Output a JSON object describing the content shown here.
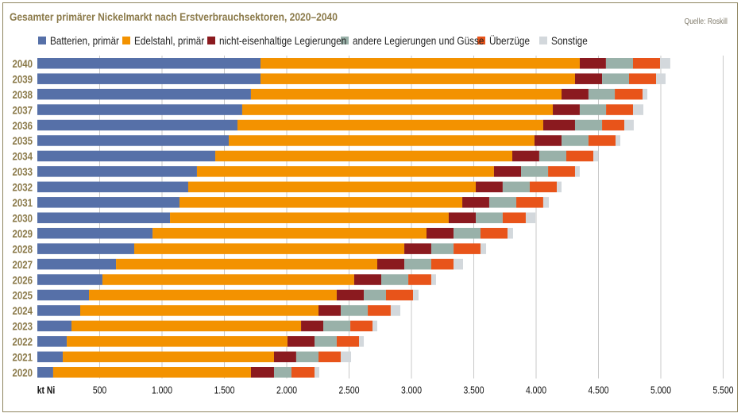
{
  "chart_data": {
    "type": "bar",
    "orientation": "horizontal",
    "stacked": true,
    "title": "Gesamter primärer Nickelmarkt nach Erstverbrauchsektoren, 2020–2040",
    "source": "Quelle: Roskill",
    "xlabel": "kt Ni",
    "ylabel": "",
    "xlim": [
      0,
      5500
    ],
    "xticks": [
      500,
      1000,
      1500,
      2000,
      2500,
      3000,
      3500,
      4000,
      4500,
      5000,
      5500
    ],
    "xtick_labels": [
      "500",
      "1.000",
      "1.500",
      "2.000",
      "2.500",
      "3.000",
      "3.500",
      "4.000",
      "4.500",
      "5.000",
      "5.500"
    ],
    "grid": "vertical",
    "legend_position": "top",
    "categories": [
      "2040",
      "2039",
      "2038",
      "2037",
      "2036",
      "2035",
      "2034",
      "2033",
      "2032",
      "2031",
      "2030",
      "2029",
      "2028",
      "2027",
      "2026",
      "2025",
      "2024",
      "2023",
      "2022",
      "2021",
      "2020"
    ],
    "series": [
      {
        "name": "Batterien, primär",
        "color": "#5670a8",
        "values": [
          1790,
          1790,
          1713,
          1643,
          1605,
          1535,
          1427,
          1280,
          1210,
          1140,
          1064,
          924,
          777,
          631,
          522,
          414,
          344,
          274,
          236,
          204,
          127
        ]
      },
      {
        "name": "Edelstahl, primär",
        "color": "#f39200",
        "values": [
          2560,
          2522,
          2491,
          2491,
          2452,
          2452,
          2382,
          2382,
          2306,
          2268,
          2235,
          2197,
          2166,
          2095,
          2019,
          1987,
          1911,
          1841,
          1770,
          1694,
          1586
        ]
      },
      {
        "name": "nicht-eisenhaltige Legierungen",
        "color": "#8b1a1f",
        "values": [
          210,
          217,
          216,
          216,
          255,
          217,
          216,
          217,
          216,
          216,
          217,
          217,
          216,
          217,
          217,
          217,
          178,
          178,
          217,
          178,
          185
        ]
      },
      {
        "name": "andere Legierungen und Güsse",
        "color": "#99b1a9",
        "values": [
          217,
          216,
          211,
          211,
          217,
          216,
          217,
          217,
          217,
          217,
          216,
          216,
          179,
          216,
          217,
          178,
          217,
          217,
          178,
          179,
          140
        ]
      },
      {
        "name": "Überzüge",
        "color": "#e8541a",
        "values": [
          217,
          217,
          223,
          216,
          178,
          217,
          217,
          216,
          217,
          216,
          185,
          217,
          216,
          179,
          184,
          217,
          184,
          178,
          179,
          178,
          185
        ]
      },
      {
        "name": "Sonstige",
        "color": "#d3d8dc",
        "values": [
          82,
          76,
          38,
          83,
          76,
          38,
          38,
          38,
          38,
          45,
          77,
          44,
          45,
          76,
          38,
          44,
          77,
          38,
          38,
          83,
          38
        ]
      }
    ]
  }
}
